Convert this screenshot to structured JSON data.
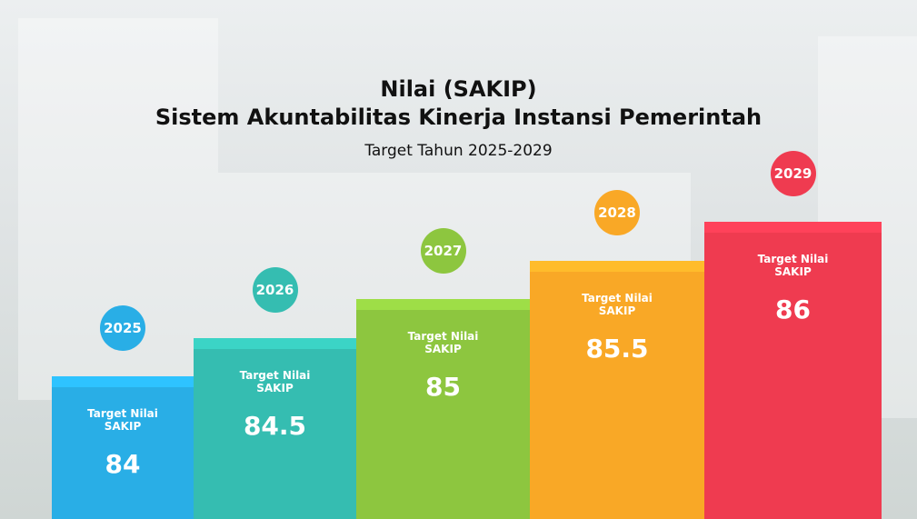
{
  "chart_data": {
    "type": "bar",
    "title": "Nilai (SAKIP)",
    "subtitle": "Sistem Akuntabilitas Kinerja Instansi Pemerintah",
    "caption": "Target Tahun 2025-2029",
    "bar_label": "Target Nilai SAKIP",
    "categories": [
      "2025",
      "2026",
      "2027",
      "2028",
      "2029"
    ],
    "values": [
      84,
      84.5,
      85,
      85.5,
      86
    ],
    "colors": [
      "#29aee6",
      "#35bdb1",
      "#8dc63f",
      "#f9a826",
      "#ef3b50"
    ]
  }
}
